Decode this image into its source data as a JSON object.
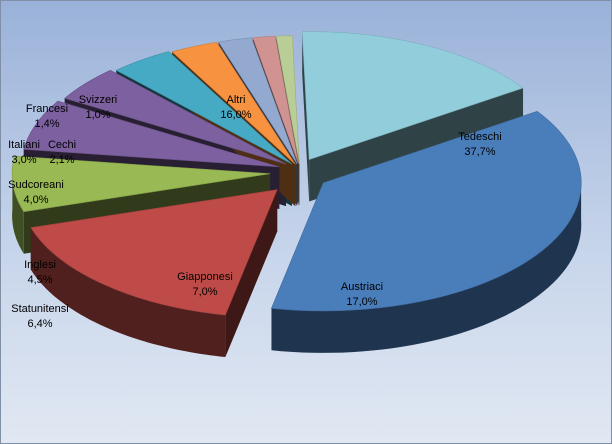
{
  "chart_data": {
    "type": "pie",
    "style": "3d-exploded",
    "slices": [
      {
        "label": "Tedeschi",
        "value": 37.7,
        "value_text": "37,7%",
        "color": "#4a7ebb"
      },
      {
        "label": "Austriaci",
        "value": 17.0,
        "value_text": "17,0%",
        "color": "#be4b48"
      },
      {
        "label": "Giapponesi",
        "value": 7.0,
        "value_text": "7,0%",
        "color": "#98b954"
      },
      {
        "label": "Statunitensi",
        "value": 6.4,
        "value_text": "6,4%",
        "color": "#7d60a0"
      },
      {
        "label": "Inglesi",
        "value": 4.5,
        "value_text": "4,5%",
        "color": "#7d60a0"
      },
      {
        "label": "Sudcoreani",
        "value": 4.0,
        "value_text": "4,0%",
        "color": "#46aac5"
      },
      {
        "label": "Italiani",
        "value": 3.0,
        "value_text": "3,0%",
        "color": "#f69240"
      },
      {
        "label": "Cechi",
        "value": 2.1,
        "value_text": "2,1%",
        "color": "#93a9cf"
      },
      {
        "label": "Francesi",
        "value": 1.4,
        "value_text": "1,4%",
        "color": "#d19392"
      },
      {
        "label": "Svizzeri",
        "value": 1.0,
        "value_text": "1,0%",
        "color": "#b9cd96"
      },
      {
        "label": "Altri",
        "value": 16.0,
        "value_text": "16,0%",
        "color": "#92cddc"
      }
    ]
  },
  "extra_thin_slice_color": "#a99bbd"
}
